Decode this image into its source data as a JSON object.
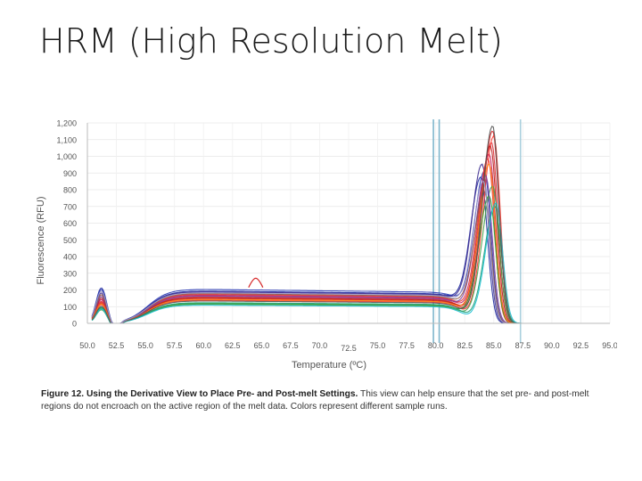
{
  "slide": {
    "title": "HRM (High Resolution Melt)"
  },
  "caption": {
    "bold": "Figure 12. Using the Derivative View to Place Pre- and Post-melt Settings.",
    "text": " This view can help ensure that the set pre- and post-melt regions do not encroach on the active region of the melt data. Colors represent different sample runs."
  },
  "chart_data": {
    "type": "line",
    "title": "",
    "xlabel": "Temperature (ºC)",
    "ylabel": "Fluorescence (RFU)",
    "xlim": [
      50.0,
      95.0
    ],
    "ylim": [
      0,
      1200
    ],
    "x_ticks": [
      "50.0",
      "52.5",
      "55.0",
      "57.5",
      "60.0",
      "62.5",
      "65.0",
      "67.5",
      "70.0",
      "72.5",
      "75.0",
      "77.5",
      "80.0",
      "82.5",
      "85.0",
      "87.5",
      "90.0",
      "92.5",
      "95.0"
    ],
    "y_ticks": [
      "0",
      "100",
      "200",
      "300",
      "400",
      "500",
      "600",
      "700",
      "800",
      "900",
      "1,000",
      "1,100",
      "1,200"
    ],
    "grid": true,
    "legend": "none",
    "region_markers": [
      {
        "x": 79.8,
        "color": "#7fb6cc"
      },
      {
        "x": 80.3,
        "color": "#7fb6cc"
      },
      {
        "x": 87.3,
        "color": "#a9cfdd"
      }
    ],
    "curve_model": {
      "x": [
        50.0,
        51.2,
        52.5,
        55.0,
        57.5,
        60.0,
        65.0,
        70.0,
        75.0,
        80.0,
        81.5,
        83.0,
        84.5,
        85.5,
        86.5,
        87.5,
        90.0,
        93.0
      ]
    },
    "series": [
      {
        "color": "#1f2a9e",
        "peak": 860,
        "tm": 83.9,
        "plateau": 195,
        "bump": 210
      },
      {
        "color": "#2b3bb5",
        "peak": 900,
        "tm": 84.2,
        "plateau": 205,
        "bump": 200
      },
      {
        "color": "#3d2b8f",
        "peak": 940,
        "tm": 84.0,
        "plateau": 190,
        "bump": 180
      },
      {
        "color": "#d62728",
        "peak": 1150,
        "tm": 84.9,
        "plateau": 150,
        "bump": 120
      },
      {
        "color": "#e0303a",
        "peak": 1080,
        "tm": 84.8,
        "plateau": 160,
        "bump": 130
      },
      {
        "color": "#c2185b",
        "peak": 1010,
        "tm": 84.6,
        "plateau": 170,
        "bump": 140
      },
      {
        "color": "#ff3b30",
        "peak": 1120,
        "tm": 85.0,
        "plateau": 140,
        "bump": 110
      },
      {
        "color": "#b71c1c",
        "peak": 1060,
        "tm": 84.7,
        "plateau": 155,
        "bump": 150
      },
      {
        "color": "#e53935",
        "peak": 980,
        "tm": 84.5,
        "plateau": 175,
        "bump": 125
      },
      {
        "color": "#2ca02c",
        "peak": 760,
        "tm": 84.6,
        "plateau": 120,
        "bump": 90
      },
      {
        "color": "#43a047",
        "peak": 820,
        "tm": 84.9,
        "plateau": 115,
        "bump": 80
      },
      {
        "color": "#1b9e77",
        "peak": 700,
        "tm": 85.1,
        "plateau": 125,
        "bump": 95
      },
      {
        "color": "#7b3fa0",
        "peak": 880,
        "tm": 84.3,
        "plateau": 165,
        "bump": 160
      },
      {
        "color": "#ff7f0e",
        "peak": 950,
        "tm": 84.6,
        "plateau": 145,
        "bump": 115
      },
      {
        "color": "#8c564b",
        "peak": 780,
        "tm": 84.2,
        "plateau": 180,
        "bump": 170
      },
      {
        "color": "#17becf",
        "peak": 720,
        "tm": 85.2,
        "plateau": 110,
        "bump": 85
      },
      {
        "color": "#555555",
        "peak": 1180,
        "tm": 84.9,
        "plateau": 135,
        "bump": 100
      },
      {
        "color": "#9e9ac8",
        "peak": 840,
        "tm": 84.1,
        "plateau": 185,
        "bump": 190
      }
    ],
    "annotation_spike": {
      "x": 64.5,
      "y": 270,
      "color": "#d62728"
    }
  }
}
